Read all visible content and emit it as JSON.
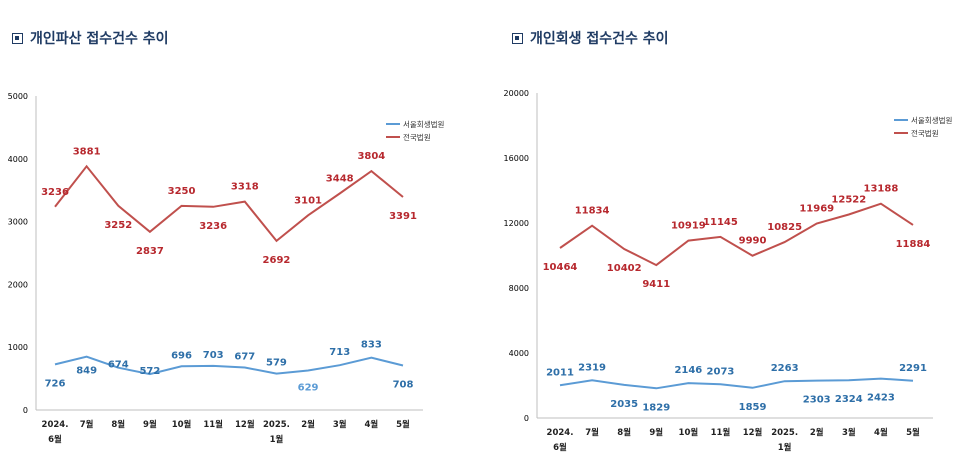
{
  "titles": {
    "left": "개인파산 접수건수 추이",
    "right": "개인회생 접수건수 추이"
  },
  "colors": {
    "seoul": "#5b9bd5",
    "seoul_label": "#2e6fa8",
    "national": "#c0504d",
    "national_label": "#b7282e",
    "title": "#1f3b63"
  },
  "chart_data": [
    {
      "type": "line",
      "title": "개인파산 접수건수 추이",
      "categories": [
        [
          "2024.",
          "6월"
        ],
        [
          "7월"
        ],
        [
          "8월"
        ],
        [
          "9월"
        ],
        [
          "10월"
        ],
        [
          "11월"
        ],
        [
          "12월"
        ],
        [
          "2025.",
          "1월"
        ],
        [
          "2월"
        ],
        [
          "3월"
        ],
        [
          "4월"
        ],
        [
          "5월"
        ]
      ],
      "yticks": [
        0,
        1000,
        2000,
        3000,
        4000,
        5000
      ],
      "ylim": [
        0,
        5000
      ],
      "legend": [
        "서울회생법원",
        "전국법원"
      ],
      "legend_position": "top-right",
      "series": [
        {
          "name": "서울회생법원",
          "values": [
            726,
            849,
            674,
            572,
            696,
            703,
            677,
            579,
            629,
            713,
            833,
            708
          ]
        },
        {
          "name": "전국법원",
          "values": [
            3236,
            3881,
            3252,
            2837,
            3250,
            3236,
            3318,
            2692,
            3101,
            3448,
            3804,
            3391
          ]
        }
      ]
    },
    {
      "type": "line",
      "title": "개인회생 접수건수 추이",
      "categories": [
        [
          "2024.",
          "6월"
        ],
        [
          "7월"
        ],
        [
          "8월"
        ],
        [
          "9월"
        ],
        [
          "10월"
        ],
        [
          "11월"
        ],
        [
          "12월"
        ],
        [
          "2025.",
          "1월"
        ],
        [
          "2월"
        ],
        [
          "3월"
        ],
        [
          "4월"
        ],
        [
          "5월"
        ]
      ],
      "yticks": [
        0,
        4000,
        8000,
        12000,
        16000,
        20000
      ],
      "ylim": [
        0,
        20000
      ],
      "legend": [
        "서울회생법원",
        "전국법원"
      ],
      "legend_position": "top-right",
      "series": [
        {
          "name": "서울회생법원",
          "values": [
            2011,
            2319,
            2035,
            1829,
            2146,
            2073,
            1859,
            2263,
            2303,
            2324,
            2423,
            2291
          ]
        },
        {
          "name": "전국법원",
          "values": [
            10464,
            11834,
            10402,
            9411,
            10919,
            11145,
            9990,
            10825,
            11969,
            12522,
            13188,
            11884
          ]
        }
      ]
    }
  ]
}
